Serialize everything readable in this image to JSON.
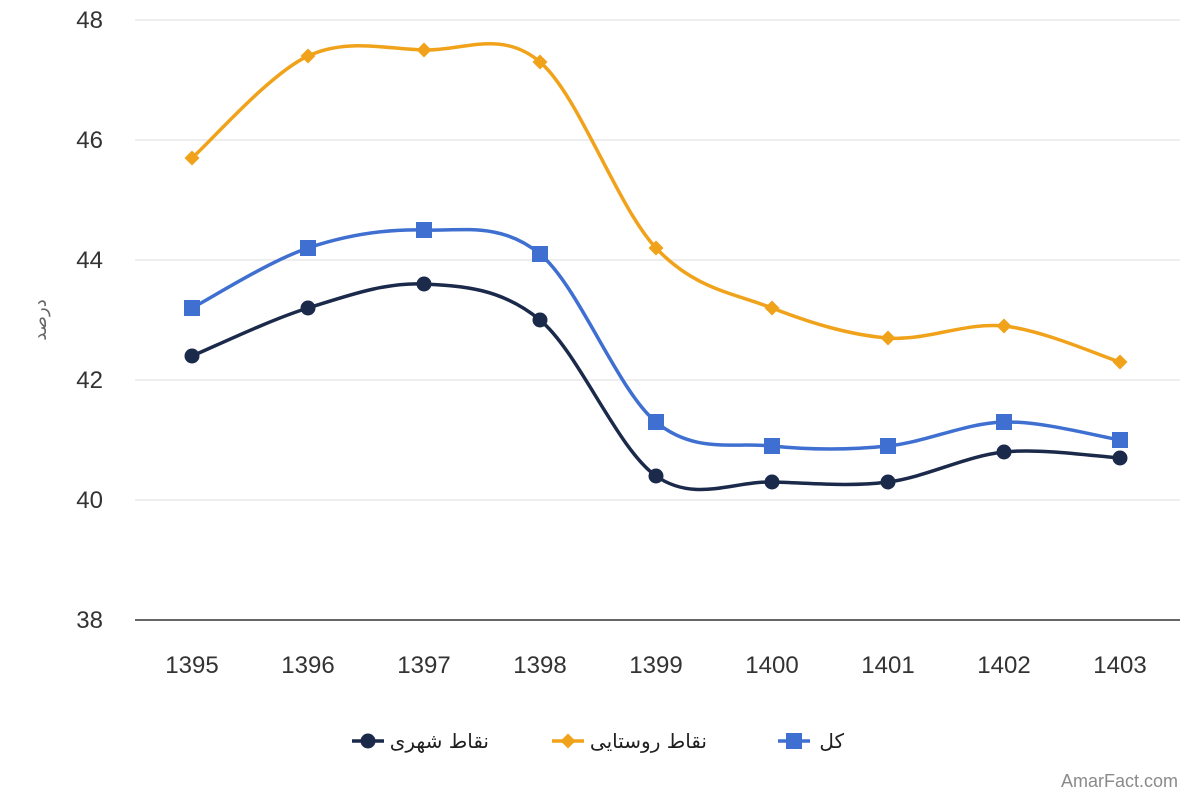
{
  "chart_data": {
    "type": "line",
    "categories": [
      "1395",
      "1396",
      "1397",
      "1398",
      "1399",
      "1400",
      "1401",
      "1402",
      "1403"
    ],
    "ylabel": "درصد",
    "ylim": [
      38,
      48
    ],
    "yticks": [
      "38",
      "40",
      "42",
      "44",
      "46",
      "48"
    ],
    "grid": true,
    "legend_position": "bottom",
    "smooth": true,
    "series": [
      {
        "name": "نقاط شهری",
        "color": "#1b2a4a",
        "marker": "circle",
        "values": [
          42.4,
          43.2,
          43.6,
          43.0,
          40.4,
          40.3,
          40.3,
          40.8,
          40.7
        ]
      },
      {
        "name": "نقاط روستایی",
        "color": "#f1a21b",
        "marker": "diamond",
        "values": [
          45.7,
          47.4,
          47.5,
          47.3,
          44.2,
          43.2,
          42.7,
          42.9,
          42.3
        ]
      },
      {
        "name": "کل",
        "color": "#3f6fd0",
        "marker": "square",
        "values": [
          43.2,
          44.2,
          44.5,
          44.1,
          41.3,
          40.9,
          40.9,
          41.3,
          41.0
        ]
      }
    ]
  },
  "watermark": "AmarFact.com"
}
